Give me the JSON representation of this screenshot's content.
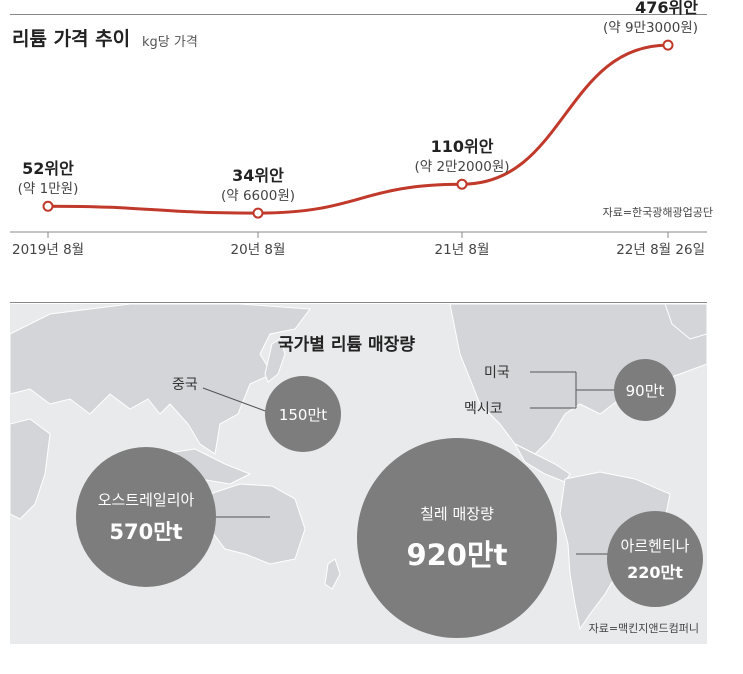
{
  "price_chart": {
    "title": "리튬 가격 추이",
    "unit": "kg당 가격",
    "source": "자료=한국광해광업공단",
    "points": [
      {
        "label_main": "52위안",
        "label_sub": "(약 1만원)"
      },
      {
        "label_main": "34위안",
        "label_sub": "(약 6600원)"
      },
      {
        "label_main": "110위안",
        "label_sub": "(약 2만2000원)"
      },
      {
        "label_main": "476위안",
        "label_sub": "(약 9만3000원)"
      }
    ],
    "line_color": "#c0392b"
  },
  "chart_data": [
    {
      "type": "line",
      "title": "리튬 가격 추이",
      "subtitle": "kg당 가격",
      "categories": [
        "2019년 8월",
        "20년 8월",
        "21년 8월",
        "22년 8월 26일"
      ],
      "series": [
        {
          "values": [
            52,
            34,
            110,
            476
          ]
        }
      ],
      "ylim": [
        0,
        500
      ],
      "grid": false
    },
    {
      "type": "bubble",
      "title": "국가별 리튬 매장량",
      "categories": [
        "칠레",
        "오스트레일리아",
        "아르헨티나",
        "중국",
        "미국",
        "멕시코"
      ],
      "values": [
        920,
        570,
        220,
        150,
        90,
        90
      ],
      "unit": "만t"
    }
  ],
  "reserves_map": {
    "title": "국가별 리튬 매장량",
    "source": "자료=맥킨지앤드컴퍼니",
    "bubble_color": "#7d7d7d",
    "china": {
      "name": "중국",
      "value": "150만t"
    },
    "australia": {
      "name": "오스트레일리아",
      "value": "570만t"
    },
    "chile": {
      "name": "칠레 매장량",
      "value": "920만t"
    },
    "argentina": {
      "name": "아르헨티나",
      "value": "220만t"
    },
    "usa": {
      "name": "미국"
    },
    "mexico": {
      "name": "멕시코"
    },
    "us_mexico_value": "90만t"
  }
}
